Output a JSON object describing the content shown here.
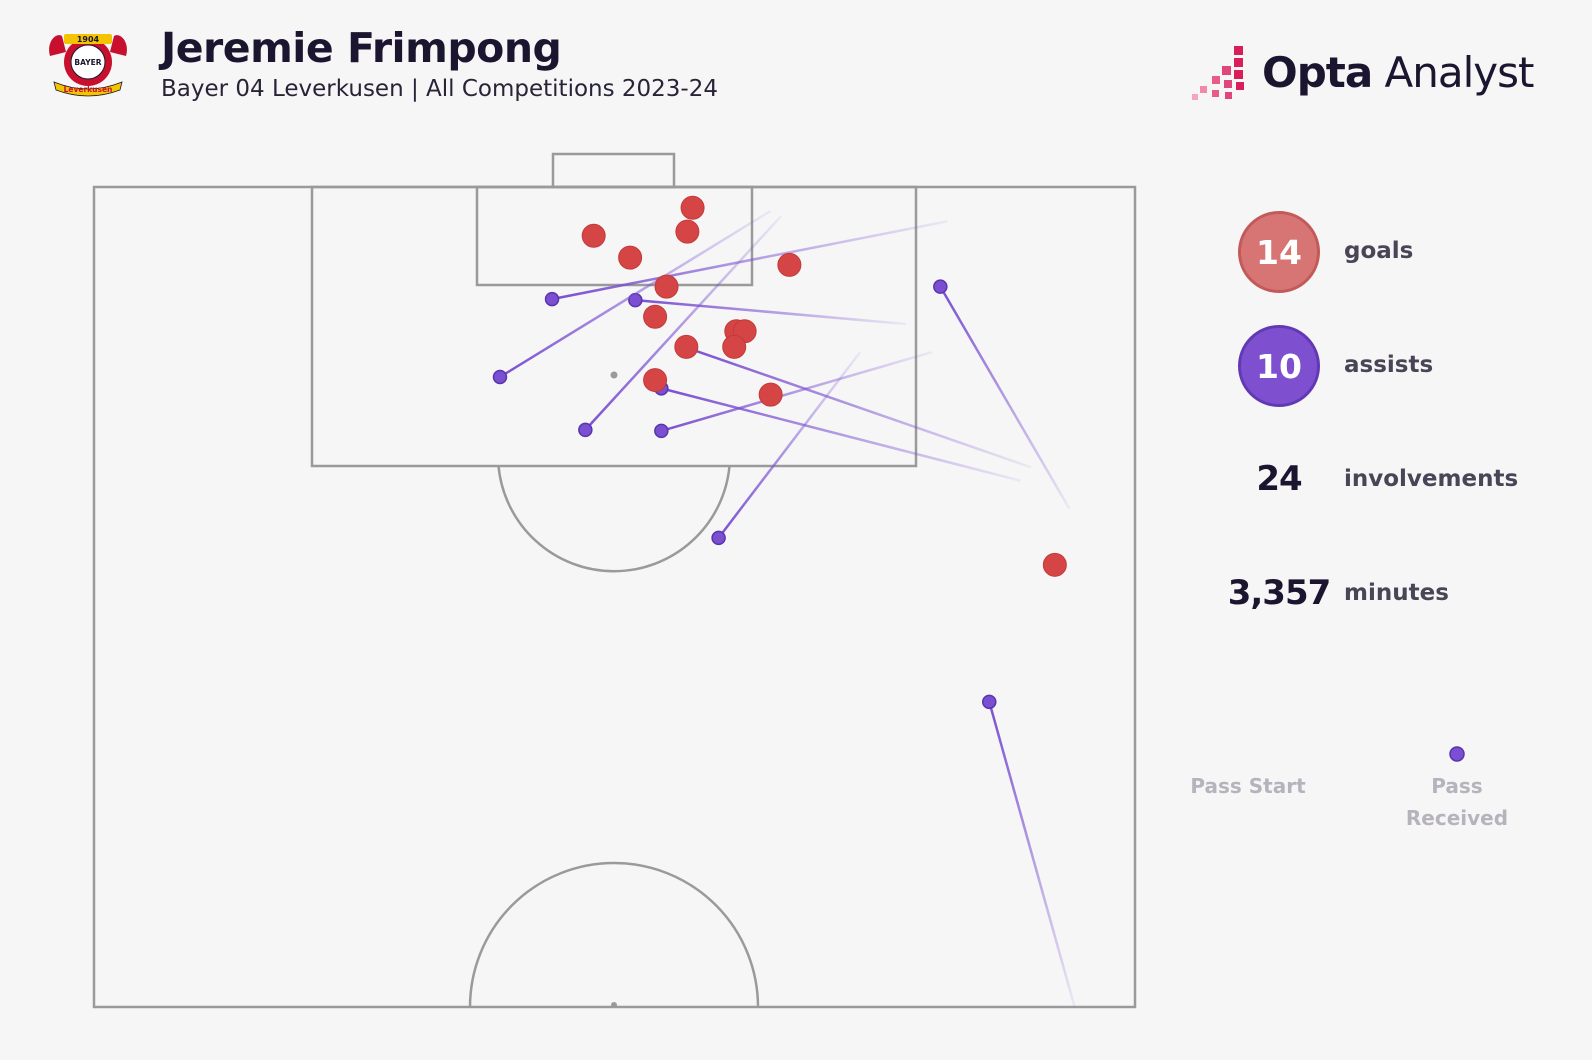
{
  "header": {
    "title": "Jeremie Frimpong",
    "subtitle": "Bayer 04 Leverkusen | All Competitions 2023-24",
    "crest_text": {
      "year": "1904",
      "name": "BAYER",
      "club": "Leverkusen"
    }
  },
  "brand": {
    "bold": "Opta",
    "light": " Analyst"
  },
  "stats": {
    "goals": {
      "value": "14",
      "label": "goals"
    },
    "assists": {
      "value": "10",
      "label": "assists"
    },
    "involvements": {
      "value": "24",
      "label": "involvements"
    },
    "minutes": {
      "value": "3,357",
      "label": "minutes"
    }
  },
  "legend": {
    "start": "Pass Start",
    "received": "Pass Received"
  },
  "colors": {
    "goal": "#d64545",
    "assist": "#7a4fd1",
    "pitch_line": "#9a9a9a",
    "goal_badge": "#d77575",
    "assist_badge": "#7e50d0"
  },
  "chart_data": {
    "type": "scatter",
    "description_axes": "x = lateral position 0-100 (left to right), y = distance from goal line in metres-like pitch units",
    "goals": [
      {
        "x": 57.5,
        "y": 2.0
      },
      {
        "x": 48.0,
        "y": 4.7
      },
      {
        "x": 57.0,
        "y": 4.3
      },
      {
        "x": 51.5,
        "y": 6.8
      },
      {
        "x": 66.8,
        "y": 7.5
      },
      {
        "x": 55.0,
        "y": 9.6
      },
      {
        "x": 53.9,
        "y": 12.5
      },
      {
        "x": 61.7,
        "y": 13.9
      },
      {
        "x": 62.5,
        "y": 13.9
      },
      {
        "x": 56.9,
        "y": 15.4
      },
      {
        "x": 61.5,
        "y": 15.4
      },
      {
        "x": 53.9,
        "y": 18.6
      },
      {
        "x": 65.0,
        "y": 20.0
      },
      {
        "x": 92.3,
        "y": 36.4
      }
    ],
    "assists": [
      {
        "start": {
          "x": 82.0,
          "y": 3.3
        },
        "end": {
          "x": 44.0,
          "y": 10.8
        }
      },
      {
        "start": {
          "x": 78.0,
          "y": 13.2
        },
        "end": {
          "x": 52.0,
          "y": 10.9
        }
      },
      {
        "start": {
          "x": 65.0,
          "y": 2.3
        },
        "end": {
          "x": 39.0,
          "y": 18.3
        }
      },
      {
        "start": {
          "x": 66.0,
          "y": 2.8
        },
        "end": {
          "x": 47.2,
          "y": 23.4
        }
      },
      {
        "start": {
          "x": 80.5,
          "y": 15.9
        },
        "end": {
          "x": 54.5,
          "y": 23.5
        }
      },
      {
        "start": {
          "x": 90.0,
          "y": 27.0
        },
        "end": {
          "x": 57.0,
          "y": 15.5
        }
      },
      {
        "start": {
          "x": 89.0,
          "y": 28.3
        },
        "end": {
          "x": 54.5,
          "y": 19.4
        }
      },
      {
        "start": {
          "x": 93.7,
          "y": 31.0
        },
        "end": {
          "x": 81.3,
          "y": 9.6
        }
      },
      {
        "start": {
          "x": 73.6,
          "y": 15.9
        },
        "end": {
          "x": 60.0,
          "y": 33.8
        }
      },
      {
        "start": {
          "x": 94.2,
          "y": 79.0
        },
        "end": {
          "x": 86.0,
          "y": 49.6
        }
      }
    ],
    "xlim": [
      0,
      100
    ],
    "ylim": [
      0,
      79
    ]
  }
}
